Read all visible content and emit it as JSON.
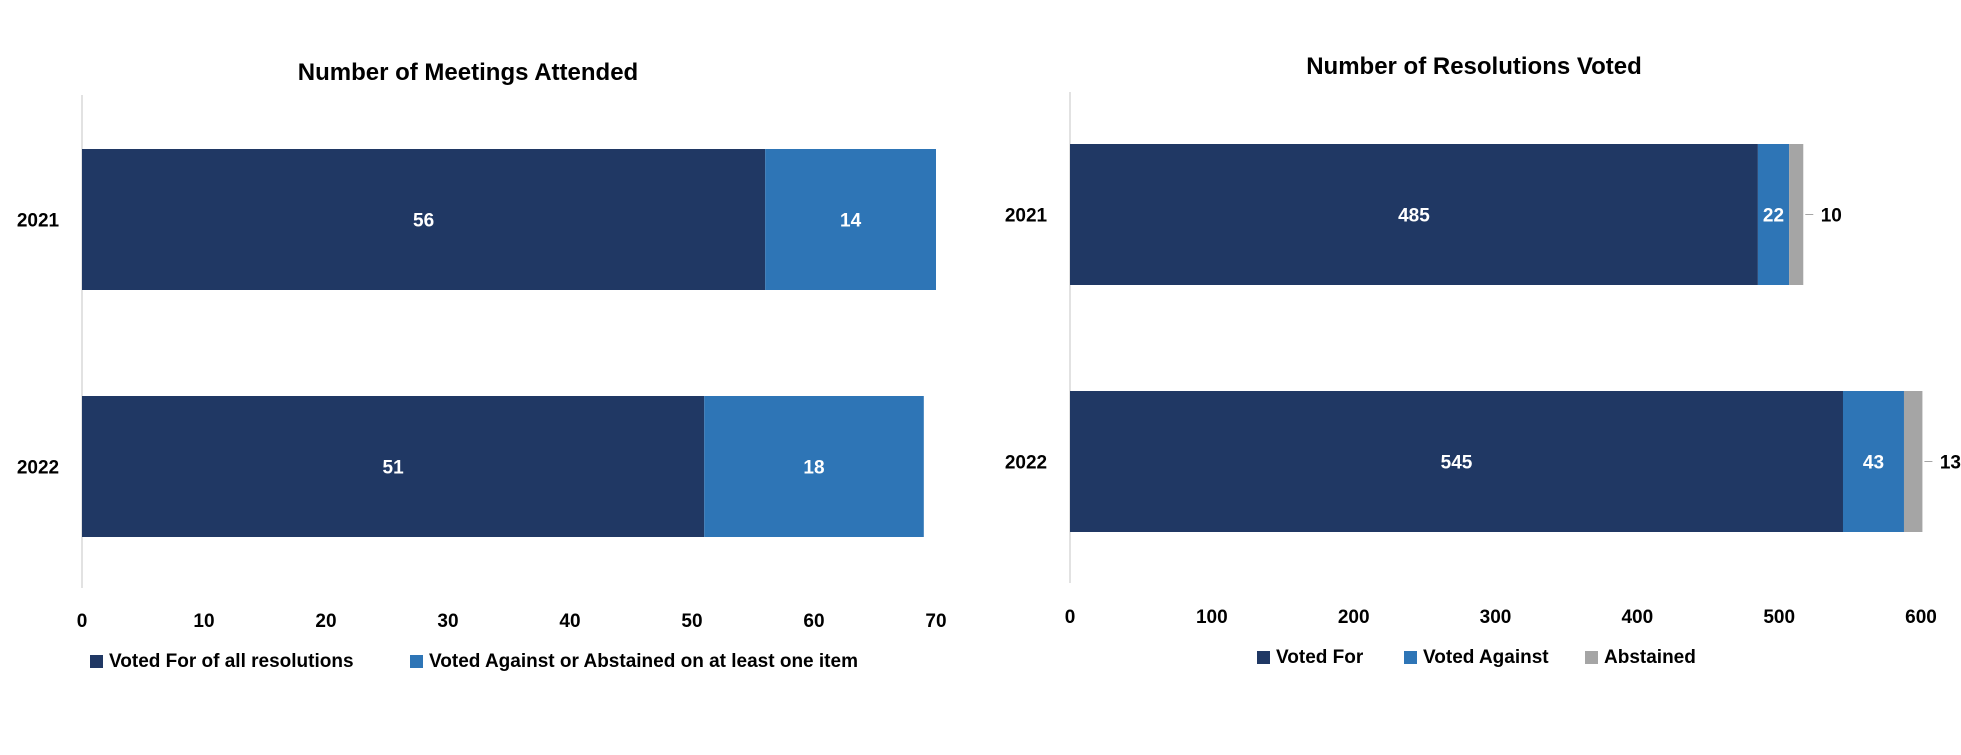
{
  "colors": {
    "voted_for": "#203864",
    "voted_against": "#2E75B6",
    "abstained": "#A5A5A5",
    "axis": "#D9D9D9",
    "text": "#000000",
    "label_light": "#FFFFFF"
  },
  "chart_data": [
    {
      "type": "bar",
      "orientation": "horizontal",
      "stacked": true,
      "title": "Number of Meetings Attended",
      "categories": [
        "2021",
        "2022"
      ],
      "series": [
        {
          "name": "Voted For of all resolutions",
          "color_key": "voted_for",
          "values": [
            56,
            51
          ]
        },
        {
          "name": "Voted Against or Abstained on at least one item",
          "color_key": "voted_against",
          "values": [
            14,
            18
          ]
        }
      ],
      "xlim": [
        0,
        70
      ],
      "xticks": [
        "0",
        "10",
        "20",
        "30",
        "40",
        "50",
        "60",
        "70"
      ],
      "xtick_values": [
        0,
        10,
        20,
        30,
        40,
        50,
        60,
        70
      ],
      "grid": false,
      "legend_position": "bottom"
    },
    {
      "type": "bar",
      "orientation": "horizontal",
      "stacked": true,
      "title": "Number of Resolutions Voted",
      "categories": [
        "2021",
        "2022"
      ],
      "series": [
        {
          "name": "Voted For",
          "color_key": "voted_for",
          "values": [
            485,
            545
          ]
        },
        {
          "name": "Voted Against",
          "color_key": "voted_against",
          "values": [
            22,
            43
          ]
        },
        {
          "name": "Abstained",
          "color_key": "abstained",
          "values": [
            10,
            13
          ]
        }
      ],
      "xlim": [
        0,
        600
      ],
      "xticks": [
        "0",
        "100",
        "200",
        "300",
        "400",
        "500",
        "600"
      ],
      "xtick_values": [
        0,
        100,
        200,
        300,
        400,
        500,
        600
      ],
      "grid": false,
      "legend_position": "bottom"
    }
  ]
}
